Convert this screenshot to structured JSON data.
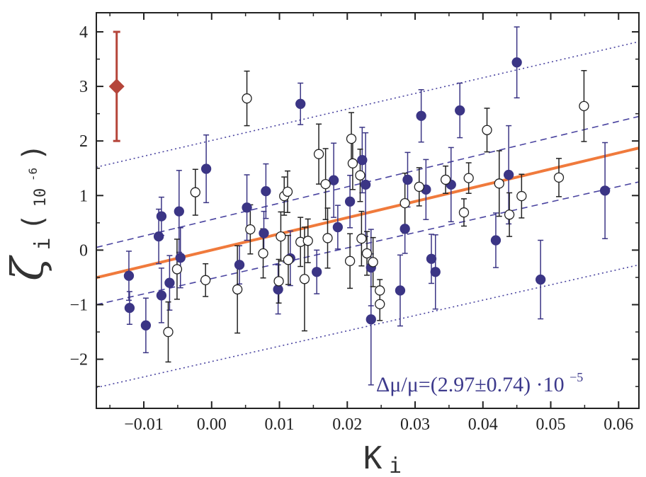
{
  "chart_data": {
    "type": "scatter",
    "xlabel": {
      "main": "K",
      "sub": "i"
    },
    "ylabel": {
      "main": "ζ",
      "sub": "i",
      "unit_base": "10",
      "unit_exp": "-6"
    },
    "annotation": {
      "text": "Δμ/μ=(2.97±0.74) ·10",
      "exp": "−5"
    },
    "xlim": [
      -0.017,
      0.063
    ],
    "ylim": [
      -2.9,
      4.35
    ],
    "xticks": [
      -0.01,
      0.0,
      0.01,
      0.02,
      0.03,
      0.04,
      0.05,
      0.06
    ],
    "xtick_labels": [
      "−0.01",
      "0.00",
      "0.01",
      "0.02",
      "0.03",
      "0.04",
      "0.05",
      "0.06"
    ],
    "yticks": [
      -2,
      -1,
      0,
      1,
      2,
      3,
      4
    ],
    "ytick_labels": [
      "−2",
      "−1",
      "0",
      "1",
      "2",
      "3",
      "4"
    ],
    "colors": {
      "filled": "#3b3585",
      "filled_err": "#3b3585",
      "open_err": "#222222",
      "fit": "#f07a3c",
      "band": "#4a44a0",
      "reference": "#b5453a",
      "axis": "#222222"
    },
    "fit_line": {
      "slope": 29.7,
      "intercept": 0.0
    },
    "bands": [
      {
        "name": "1-sigma-upper",
        "style": "dashed",
        "points": [
          [
            -0.017,
            0.05
          ],
          [
            0.063,
            2.45
          ]
        ]
      },
      {
        "name": "1-sigma-lower",
        "style": "dashed",
        "points": [
          [
            -0.017,
            -1.0
          ],
          [
            0.063,
            1.25
          ]
        ]
      },
      {
        "name": "3-sigma-upper",
        "style": "dotted",
        "points": [
          [
            -0.017,
            1.52
          ],
          [
            0.063,
            3.82
          ]
        ]
      },
      {
        "name": "3-sigma-lower",
        "style": "dotted",
        "points": [
          [
            -0.017,
            -2.52
          ],
          [
            0.063,
            -0.27
          ]
        ]
      }
    ],
    "reference_point": {
      "x": -0.014,
      "y": 3.0,
      "err": 1.0
    },
    "series": [
      {
        "marker": "filled",
        "points": [
          {
            "x": -0.0122,
            "y": -0.47,
            "e": 0.45
          },
          {
            "x": -0.0121,
            "y": -1.06,
            "e": 0.3
          },
          {
            "x": -0.0097,
            "y": -1.38,
            "e": 0.5
          },
          {
            "x": -0.0078,
            "y": 0.25,
            "e": 0.5
          },
          {
            "x": -0.0074,
            "y": 0.62,
            "e": 0.35
          },
          {
            "x": -0.0074,
            "y": -0.83,
            "e": 0.5
          },
          {
            "x": -0.0062,
            "y": -0.6,
            "e": 0.5
          },
          {
            "x": -0.0048,
            "y": 0.71,
            "e": 0.75
          },
          {
            "x": -0.0046,
            "y": -0.14,
            "e": 0.55
          },
          {
            "x": -0.0008,
            "y": 1.49,
            "e": 0.62
          },
          {
            "x": 0.0041,
            "y": -0.27,
            "e": 0.35
          },
          {
            "x": 0.0052,
            "y": 0.78,
            "e": 0.6
          },
          {
            "x": 0.0077,
            "y": 0.31,
            "e": 0.4
          },
          {
            "x": 0.008,
            "y": 1.08,
            "e": 0.5
          },
          {
            "x": 0.0098,
            "y": -0.72,
            "e": 0.45
          },
          {
            "x": 0.0116,
            "y": -0.15,
            "e": 0.5
          },
          {
            "x": 0.0131,
            "y": 2.68,
            "e": 0.38
          },
          {
            "x": 0.0155,
            "y": -0.4,
            "e": 0.4
          },
          {
            "x": 0.018,
            "y": 1.28,
            "e": 0.68
          },
          {
            "x": 0.0186,
            "y": 0.42,
            "e": 0.4
          },
          {
            "x": 0.0204,
            "y": 0.89,
            "e": 0.48
          },
          {
            "x": 0.0222,
            "y": 1.65,
            "e": 0.6
          },
          {
            "x": 0.0227,
            "y": 1.2,
            "e": 0.95
          },
          {
            "x": 0.0235,
            "y": -0.32,
            "e": 0.7
          },
          {
            "x": 0.0235,
            "y": -1.27,
            "e": 1.2
          },
          {
            "x": 0.0278,
            "y": -0.74,
            "e": 0.65
          },
          {
            "x": 0.0285,
            "y": 0.39,
            "e": 0.45
          },
          {
            "x": 0.0289,
            "y": 1.29,
            "e": 0.5
          },
          {
            "x": 0.0309,
            "y": 2.46,
            "e": 0.48
          },
          {
            "x": 0.0316,
            "y": 1.11,
            "e": 0.55
          },
          {
            "x": 0.0324,
            "y": -0.16,
            "e": 0.45
          },
          {
            "x": 0.033,
            "y": -0.4,
            "e": 0.68
          },
          {
            "x": 0.0353,
            "y": 1.2,
            "e": 0.68
          },
          {
            "x": 0.0366,
            "y": 2.56,
            "e": 0.5
          },
          {
            "x": 0.0419,
            "y": 0.18,
            "e": 0.5
          },
          {
            "x": 0.0438,
            "y": 1.38,
            "e": 0.9
          },
          {
            "x": 0.045,
            "y": 3.44,
            "e": 0.65
          },
          {
            "x": 0.0485,
            "y": -0.54,
            "e": 0.72
          },
          {
            "x": 0.058,
            "y": 1.09,
            "e": 0.88
          }
        ]
      },
      {
        "marker": "open",
        "points": [
          {
            "x": -0.0064,
            "y": -1.5,
            "e": 0.55
          },
          {
            "x": -0.0051,
            "y": -0.35,
            "e": 0.55
          },
          {
            "x": -0.0024,
            "y": 1.06,
            "e": 0.42
          },
          {
            "x": -0.0009,
            "y": -0.55,
            "e": 0.3
          },
          {
            "x": 0.0038,
            "y": -0.72,
            "e": 0.8
          },
          {
            "x": 0.0052,
            "y": 2.78,
            "e": 0.5
          },
          {
            "x": 0.0057,
            "y": 0.38,
            "e": 0.45
          },
          {
            "x": 0.0076,
            "y": -0.06,
            "e": 0.45
          },
          {
            "x": 0.0099,
            "y": -0.57,
            "e": 0.4
          },
          {
            "x": 0.0102,
            "y": 0.25,
            "e": 0.45
          },
          {
            "x": 0.0107,
            "y": 0.99,
            "e": 0.35
          },
          {
            "x": 0.0112,
            "y": 1.07,
            "e": 0.38
          },
          {
            "x": 0.0113,
            "y": -0.18,
            "e": 0.45
          },
          {
            "x": 0.0131,
            "y": 0.15,
            "e": 0.45
          },
          {
            "x": 0.0137,
            "y": -0.53,
            "e": 0.95
          },
          {
            "x": 0.0142,
            "y": 0.17,
            "e": 0.4
          },
          {
            "x": 0.0158,
            "y": 1.76,
            "e": 0.55
          },
          {
            "x": 0.0168,
            "y": 1.21,
            "e": 0.65
          },
          {
            "x": 0.0171,
            "y": 0.22,
            "e": 0.55
          },
          {
            "x": 0.0204,
            "y": -0.2,
            "e": 0.5
          },
          {
            "x": 0.0206,
            "y": 2.04,
            "e": 0.48
          },
          {
            "x": 0.0208,
            "y": 1.59,
            "e": 0.48
          },
          {
            "x": 0.0219,
            "y": 1.37,
            "e": 0.48
          },
          {
            "x": 0.0221,
            "y": 0.21,
            "e": 0.5
          },
          {
            "x": 0.0229,
            "y": -0.06,
            "e": 0.4
          },
          {
            "x": 0.0238,
            "y": -0.22,
            "e": 0.45
          },
          {
            "x": 0.0248,
            "y": -0.74,
            "e": 0.2
          },
          {
            "x": 0.0248,
            "y": -0.99,
            "e": 0.3
          },
          {
            "x": 0.0285,
            "y": 0.86,
            "e": 0.55
          },
          {
            "x": 0.0306,
            "y": 1.16,
            "e": 0.35
          },
          {
            "x": 0.0345,
            "y": 1.29,
            "e": 0.25
          },
          {
            "x": 0.0372,
            "y": 0.69,
            "e": 0.25
          },
          {
            "x": 0.0379,
            "y": 1.32,
            "e": 0.28
          },
          {
            "x": 0.0406,
            "y": 2.2,
            "e": 0.4
          },
          {
            "x": 0.0424,
            "y": 1.22,
            "e": 0.6
          },
          {
            "x": 0.0439,
            "y": 0.65,
            "e": 0.4
          },
          {
            "x": 0.0457,
            "y": 0.99,
            "e": 0.4
          },
          {
            "x": 0.0512,
            "y": 1.33,
            "e": 0.35
          },
          {
            "x": 0.0549,
            "y": 2.64,
            "e": 0.65
          }
        ]
      }
    ]
  }
}
